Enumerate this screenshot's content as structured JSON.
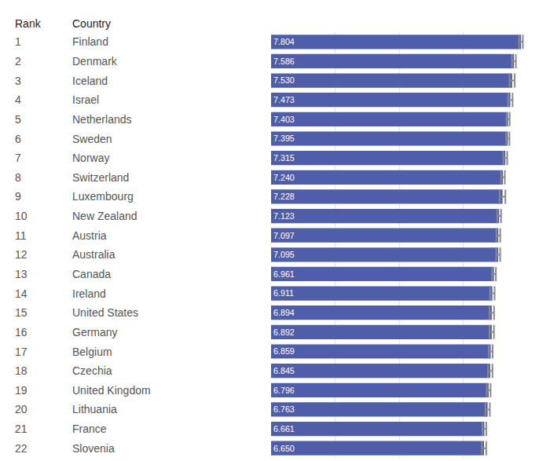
{
  "chart_data": {
    "type": "bar",
    "orientation": "horizontal",
    "columns": [
      "Rank",
      "Country"
    ],
    "ranks": [
      1,
      2,
      3,
      4,
      5,
      6,
      7,
      8,
      9,
      10,
      11,
      12,
      13,
      14,
      15,
      16,
      17,
      18,
      19,
      20,
      21,
      22
    ],
    "categories": [
      "Finland",
      "Denmark",
      "Iceland",
      "Israel",
      "Netherlands",
      "Sweden",
      "Norway",
      "Switzerland",
      "Luxembourg",
      "New Zealand",
      "Austria",
      "Australia",
      "Canada",
      "Ireland",
      "United States",
      "Germany",
      "Belgium",
      "Czechia",
      "United Kingdom",
      "Lithuania",
      "France",
      "Slovenia"
    ],
    "values": [
      7.804,
      7.586,
      7.53,
      7.473,
      7.403,
      7.395,
      7.315,
      7.24,
      7.228,
      7.123,
      7.097,
      7.095,
      6.961,
      6.911,
      6.894,
      6.892,
      6.859,
      6.845,
      6.796,
      6.763,
      6.661,
      6.65
    ],
    "value_labels": [
      "7.804",
      "7.586",
      "7.530",
      "7.473",
      "7.403",
      "7.395",
      "7.315",
      "7.240",
      "7.228",
      "7.123",
      "7.097",
      "7.095",
      "6.961",
      "6.911",
      "6.894",
      "6.892",
      "6.859",
      "6.845",
      "6.796",
      "6.763",
      "6.661",
      "6.650"
    ],
    "error": [
      0.06,
      0.06,
      0.08,
      0.07,
      0.05,
      0.05,
      0.06,
      0.06,
      0.09,
      0.06,
      0.06,
      0.06,
      0.06,
      0.07,
      0.07,
      0.07,
      0.06,
      0.07,
      0.06,
      0.07,
      0.06,
      0.07
    ],
    "color": "#4f5ea9",
    "data_labels": true,
    "xlim": [
      0,
      8
    ],
    "xticks": [
      0,
      2,
      4,
      6,
      8
    ],
    "grid": true,
    "tick_labels": false
  }
}
